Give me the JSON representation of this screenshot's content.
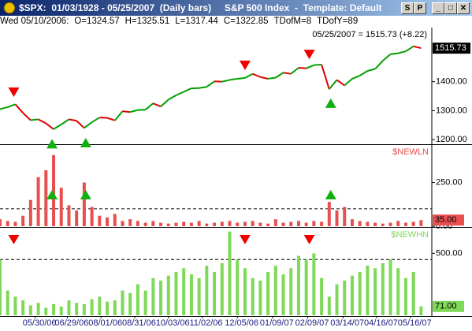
{
  "header": {
    "title": "$SPX:  01/03/1928 - 05/25/2007  (Daily bars)     S&P 500 Index  -  Template: Default",
    "buttons": [
      "S",
      "P"
    ],
    "info": [
      "Wed 05/10/2006:",
      "O=1324.57",
      "H=1325.51",
      "L=1317.44",
      "C=1322.85",
      "TDofM=8",
      "TDofY=89"
    ]
  },
  "chart_data": [
    {
      "type": "line",
      "annotation": "05/25/2007 = 1515.73 (+8.22)",
      "x": [
        -10,
        -5,
        0,
        5,
        10,
        15,
        20,
        25,
        30,
        35,
        40,
        45,
        50,
        55,
        60,
        65,
        70,
        75,
        80,
        85,
        90,
        95,
        100,
        105,
        110,
        115,
        120,
        125,
        130,
        135,
        140,
        145,
        150,
        155,
        160,
        165,
        170,
        175,
        180,
        185,
        190,
        195,
        200,
        205,
        210,
        215,
        220,
        225,
        230,
        235,
        240,
        245,
        250,
        255,
        260,
        265
      ],
      "values": [
        1305,
        1312,
        1322,
        1292,
        1267,
        1270,
        1256,
        1236,
        1252,
        1270,
        1265,
        1240,
        1260,
        1276,
        1275,
        1266,
        1298,
        1295,
        1302,
        1303,
        1325,
        1314,
        1338,
        1353,
        1365,
        1377,
        1378,
        1382,
        1401,
        1400,
        1406,
        1410,
        1413,
        1427,
        1416,
        1410,
        1414,
        1431,
        1427,
        1448,
        1446,
        1457,
        1459,
        1374,
        1406,
        1387,
        1410,
        1421,
        1437,
        1444,
        1472,
        1495,
        1498,
        1505,
        1522,
        1515.73
      ],
      "up_color": "#00a000",
      "down_color": "#e00000",
      "xlim": [
        -10,
        272
      ],
      "ylim": [
        1184,
        1584
      ],
      "yticks": [
        {
          "value": 1200,
          "label": "1200.00"
        },
        {
          "value": 1300,
          "label": "1300.00"
        },
        {
          "value": 1400,
          "label": "1400.00"
        }
      ],
      "buy_signals": [
        24,
        46,
        206
      ],
      "sell_signals": [
        -1,
        150,
        192
      ]
    },
    {
      "type": "bar",
      "label": "$NEWLN",
      "color": "#e85050",
      "x": [
        -10,
        -5,
        0,
        5,
        10,
        15,
        20,
        25,
        30,
        35,
        40,
        45,
        50,
        55,
        60,
        65,
        70,
        75,
        80,
        85,
        90,
        95,
        100,
        105,
        110,
        115,
        120,
        125,
        130,
        135,
        140,
        145,
        150,
        155,
        160,
        165,
        170,
        175,
        180,
        185,
        190,
        195,
        200,
        205,
        210,
        215,
        220,
        225,
        230,
        235,
        240,
        245,
        250,
        255,
        260,
        265
      ],
      "values": [
        40,
        30,
        25,
        60,
        150,
        280,
        320,
        407,
        220,
        120,
        90,
        250,
        110,
        60,
        50,
        70,
        30,
        40,
        30,
        20,
        30,
        20,
        15,
        20,
        25,
        20,
        30,
        15,
        20,
        25,
        30,
        20,
        25,
        30,
        20,
        15,
        40,
        20,
        25,
        30,
        20,
        30,
        25,
        139,
        90,
        110,
        40,
        30,
        25,
        20,
        15,
        20,
        30,
        20,
        25,
        35
      ],
      "value_labels": {
        "55": "35.00"
      },
      "xlim": [
        -10,
        272
      ],
      "ylim": [
        0,
        460
      ],
      "yticks": [
        {
          "value": 0,
          "label": "0.00"
        },
        {
          "value": 250,
          "label": "250.00"
        }
      ],
      "reference_line": 100,
      "buy_signals": [
        24,
        46,
        206
      ]
    },
    {
      "type": "bar",
      "label": "$NEWHN",
      "color": "#7ed957",
      "x": [
        -10,
        -5,
        0,
        5,
        10,
        15,
        20,
        25,
        30,
        35,
        40,
        45,
        50,
        55,
        60,
        65,
        70,
        75,
        80,
        85,
        90,
        95,
        100,
        105,
        110,
        115,
        120,
        125,
        130,
        135,
        140,
        145,
        150,
        155,
        160,
        165,
        170,
        175,
        180,
        185,
        190,
        195,
        200,
        205,
        210,
        215,
        220,
        225,
        230,
        235,
        240,
        245,
        250,
        255,
        260,
        265
      ],
      "values": [
        450,
        200,
        150,
        120,
        80,
        100,
        60,
        90,
        70,
        120,
        100,
        90,
        130,
        150,
        110,
        120,
        200,
        180,
        250,
        200,
        300,
        280,
        320,
        350,
        380,
        330,
        300,
        400,
        350,
        420,
        676,
        450,
        380,
        300,
        280,
        350,
        400,
        330,
        380,
        480,
        450,
        500,
        300,
        150,
        250,
        280,
        320,
        350,
        400,
        380,
        420,
        450,
        380,
        300,
        350,
        71
      ],
      "value_labels": {
        "55": "71.00"
      },
      "xlim": [
        -10,
        272
      ],
      "ylim": [
        0,
        700
      ],
      "yticks": [
        {
          "value": 500,
          "label": "500.00"
        }
      ],
      "reference_line": 450,
      "sell_signals": [
        -1,
        150,
        192
      ],
      "xticks": [
        {
          "value": 13,
          "label": "05/30/06"
        },
        {
          "value": 34,
          "label": "06/29/06"
        },
        {
          "value": 56,
          "label": "08/01/06"
        },
        {
          "value": 78,
          "label": "08/31/06"
        },
        {
          "value": 100,
          "label": "10/03/06"
        },
        {
          "value": 122,
          "label": "11/02/06"
        },
        {
          "value": 145,
          "label": "12/05/06"
        },
        {
          "value": 168,
          "label": "01/09/07"
        },
        {
          "value": 191,
          "label": "02/09/07"
        },
        {
          "value": 214,
          "label": "03/14/07"
        },
        {
          "value": 236,
          "label": "04/16/07"
        },
        {
          "value": 258,
          "label": "05/16/07"
        }
      ]
    }
  ]
}
